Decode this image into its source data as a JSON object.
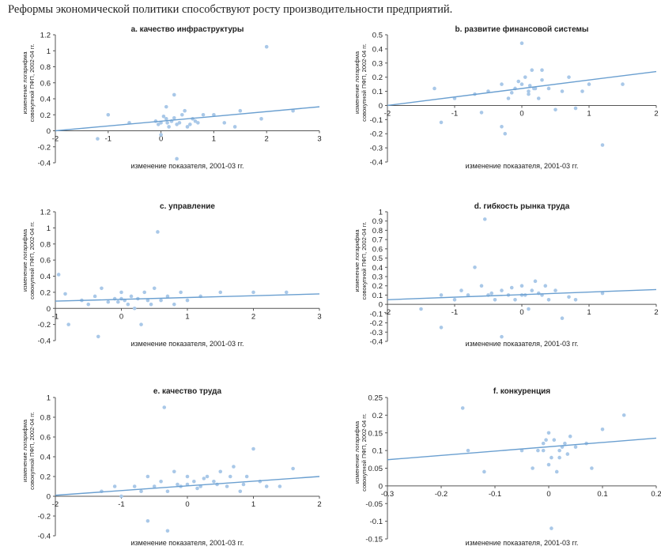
{
  "title": "Реформы экономической политики способствуют росту производительности предприятий.",
  "colors": {
    "points": "#a9c8e8",
    "line": "#6a9fd0",
    "axis": "#555555",
    "text": "#222222"
  },
  "chart_data": [
    {
      "type": "scatter",
      "title": "a. качество инфраструктуры",
      "xlabel": "изменение показателя, 2001-03 гг.",
      "ylabel": "изменение логарифма совокупной ПФП, 2002-04 гг.",
      "xlim": [
        -2,
        3
      ],
      "ylim": [
        -0.4,
        1.2
      ],
      "xticks": [
        "-2",
        "-1",
        "0",
        "1",
        "2",
        "3"
      ],
      "yticks": [
        "-0.4",
        "-0.2",
        "0",
        "0.2",
        "0.4",
        "0.6",
        "0.8",
        "1",
        "1.2"
      ],
      "trend": [
        [
          -2,
          0.0
        ],
        [
          3,
          0.3
        ]
      ],
      "points": [
        [
          -1.0,
          0.2
        ],
        [
          -0.6,
          0.1
        ],
        [
          -1.2,
          -0.1
        ],
        [
          0.0,
          0.1
        ],
        [
          0.1,
          0.15
        ],
        [
          0.2,
          0.12
        ],
        [
          0.3,
          0.08
        ],
        [
          0.4,
          0.2
        ],
        [
          0.25,
          0.45
        ],
        [
          0.1,
          0.3
        ],
        [
          0.0,
          -0.05
        ],
        [
          0.3,
          -0.35
        ],
        [
          0.5,
          0.05
        ],
        [
          0.6,
          0.15
        ],
        [
          0.7,
          0.1
        ],
        [
          -0.1,
          0.12
        ],
        [
          0.05,
          0.18
        ],
        [
          0.15,
          0.05
        ],
        [
          0.35,
          0.1
        ],
        [
          0.45,
          0.25
        ],
        [
          0.8,
          0.2
        ],
        [
          1.0,
          0.2
        ],
        [
          1.2,
          0.1
        ],
        [
          1.5,
          0.25
        ],
        [
          1.9,
          0.15
        ],
        [
          2.0,
          1.05
        ],
        [
          2.5,
          0.25
        ],
        [
          0.2,
          0.12
        ],
        [
          0.25,
          0.16
        ],
        [
          0.12,
          0.1
        ],
        [
          -0.05,
          0.08
        ],
        [
          0.55,
          0.08
        ],
        [
          0.65,
          0.12
        ],
        [
          1.4,
          0.05
        ]
      ]
    },
    {
      "type": "scatter",
      "title": "b. развитие финансовой системы",
      "xlabel": "изменение показателя, 2001-03 гг.",
      "ylabel": "изменение логарифма совокупной ПФП, 2002-04 гг.",
      "xlim": [
        -2,
        2
      ],
      "ylim": [
        -0.4,
        0.5
      ],
      "xticks": [
        "-2",
        "-1",
        "0",
        "1",
        "2"
      ],
      "yticks": [
        "-0.4",
        "-0.3",
        "-0.2",
        "-0.1",
        "0",
        "0.1",
        "0.2",
        "0.3",
        "0.4",
        "0.5"
      ],
      "trend": [
        [
          -2,
          0.0
        ],
        [
          2,
          0.24
        ]
      ],
      "points": [
        [
          -1.2,
          -0.12
        ],
        [
          -1.3,
          0.12
        ],
        [
          -1.0,
          0.05
        ],
        [
          -0.7,
          0.08
        ],
        [
          -0.5,
          0.1
        ],
        [
          -0.3,
          0.15
        ],
        [
          -0.2,
          0.05
        ],
        [
          -0.1,
          0.12
        ],
        [
          0.0,
          0.15
        ],
        [
          0.05,
          0.2
        ],
        [
          0.1,
          0.1
        ],
        [
          0.15,
          0.25
        ],
        [
          0.2,
          0.12
        ],
        [
          0.25,
          0.05
        ],
        [
          0.3,
          0.18
        ],
        [
          0.0,
          0.44
        ],
        [
          -0.3,
          -0.15
        ],
        [
          -0.25,
          -0.2
        ],
        [
          -0.6,
          -0.05
        ],
        [
          0.5,
          -0.03
        ],
        [
          0.6,
          0.1
        ],
        [
          0.7,
          0.2
        ],
        [
          0.8,
          -0.02
        ],
        [
          1.0,
          0.15
        ],
        [
          1.2,
          -0.28
        ],
        [
          0.3,
          0.25
        ],
        [
          0.1,
          0.08
        ],
        [
          -0.05,
          0.17
        ],
        [
          0.12,
          0.14
        ],
        [
          0.18,
          0.12
        ],
        [
          -0.15,
          0.09
        ],
        [
          0.4,
          0.12
        ],
        [
          1.5,
          0.15
        ],
        [
          0.9,
          0.1
        ]
      ]
    },
    {
      "type": "scatter",
      "title": "c. управление",
      "xlabel": "изменение показателя, 2001-03 гг.",
      "ylabel": "изменение логарифма совокупной ПФП, 2002-04 гг.",
      "xlim": [
        -1,
        3
      ],
      "ylim": [
        -0.4,
        1.2
      ],
      "xticks": [
        "-1",
        "0",
        "1",
        "2",
        "3"
      ],
      "yticks": [
        "-0.4",
        "-0.2",
        "0",
        "0.2",
        "0.4",
        "0.6",
        "0.8",
        "1",
        "1.2"
      ],
      "trend": [
        [
          -1,
          0.09
        ],
        [
          3,
          0.18
        ]
      ],
      "points": [
        [
          -0.95,
          0.42
        ],
        [
          -0.85,
          0.18
        ],
        [
          -0.8,
          -0.2
        ],
        [
          -0.6,
          0.1
        ],
        [
          -0.5,
          0.05
        ],
        [
          -0.4,
          0.15
        ],
        [
          -0.3,
          0.25
        ],
        [
          -0.2,
          0.08
        ],
        [
          -0.1,
          0.12
        ],
        [
          0.0,
          0.2
        ],
        [
          0.05,
          0.1
        ],
        [
          0.1,
          0.05
        ],
        [
          0.15,
          0.15
        ],
        [
          0.2,
          0.0
        ],
        [
          0.3,
          -0.2
        ],
        [
          0.35,
          0.2
        ],
        [
          0.4,
          0.1
        ],
        [
          0.5,
          0.25
        ],
        [
          0.55,
          0.95
        ],
        [
          0.6,
          0.1
        ],
        [
          0.7,
          0.15
        ],
        [
          0.8,
          0.05
        ],
        [
          0.9,
          0.2
        ],
        [
          1.0,
          0.1
        ],
        [
          1.2,
          0.15
        ],
        [
          1.5,
          0.2
        ],
        [
          2.0,
          0.2
        ],
        [
          2.5,
          0.2
        ],
        [
          -0.35,
          -0.35
        ],
        [
          0.0,
          0.12
        ],
        [
          -0.05,
          0.08
        ],
        [
          0.25,
          0.12
        ],
        [
          0.45,
          0.05
        ]
      ]
    },
    {
      "type": "scatter",
      "title": "d. гибкость рынка труда",
      "xlabel": "изменение показателя, 2001-03 гг.",
      "ylabel": "изменение логарифма совокупной ПФП, 2002-04 гг.",
      "xlim": [
        -2,
        2
      ],
      "ylim": [
        -0.4,
        1.0
      ],
      "xticks": [
        "-2",
        "-1",
        "0",
        "1",
        "2"
      ],
      "yticks": [
        "-0.4",
        "-0.3",
        "-0.2",
        "-0.1",
        "0",
        "0.1",
        "0.2",
        "0.3",
        "0.4",
        "0.5",
        "0.6",
        "0.7",
        "0.8",
        "0.9",
        "1"
      ],
      "trend": [
        [
          -2,
          0.05
        ],
        [
          2,
          0.16
        ]
      ],
      "points": [
        [
          -1.5,
          -0.05
        ],
        [
          -1.2,
          -0.25
        ],
        [
          -1.2,
          0.1
        ],
        [
          -1.0,
          0.05
        ],
        [
          -0.9,
          0.15
        ],
        [
          -0.8,
          0.1
        ],
        [
          -0.7,
          0.4
        ],
        [
          -0.6,
          0.2
        ],
        [
          -0.5,
          0.1
        ],
        [
          -0.4,
          0.05
        ],
        [
          -0.3,
          0.15
        ],
        [
          -0.2,
          0.1
        ],
        [
          -0.1,
          0.05
        ],
        [
          0.0,
          0.2
        ],
        [
          0.05,
          0.1
        ],
        [
          0.1,
          -0.05
        ],
        [
          0.15,
          0.15
        ],
        [
          0.2,
          0.25
        ],
        [
          0.3,
          0.1
        ],
        [
          0.4,
          0.05
        ],
        [
          0.5,
          0.15
        ],
        [
          0.6,
          -0.15
        ],
        [
          0.8,
          0.05
        ],
        [
          1.2,
          0.12
        ],
        [
          -0.55,
          0.92
        ],
        [
          -0.3,
          -0.35
        ],
        [
          0.0,
          0.1
        ],
        [
          -0.15,
          0.18
        ],
        [
          0.25,
          0.12
        ],
        [
          0.35,
          0.2
        ],
        [
          -0.45,
          0.12
        ],
        [
          0.7,
          0.08
        ]
      ]
    },
    {
      "type": "scatter",
      "title": "e. качество труда",
      "xlabel": "изменение показателя, 2001-03 гг.",
      "ylabel": "изменение логарифма совокупной ПФП, 2002-04 гг.",
      "xlim": [
        -2,
        2
      ],
      "ylim": [
        -0.4,
        1.0
      ],
      "xticks": [
        "-2",
        "-1",
        "0",
        "1",
        "2"
      ],
      "yticks": [
        "-0.4",
        "-0.2",
        "0",
        "0.2",
        "0.4",
        "0.6",
        "0.8",
        "1"
      ],
      "trend": [
        [
          -2,
          0.01
        ],
        [
          2,
          0.2
        ]
      ],
      "points": [
        [
          -1.3,
          0.05
        ],
        [
          -1.1,
          0.1
        ],
        [
          -1.0,
          0.0
        ],
        [
          -0.8,
          0.1
        ],
        [
          -0.7,
          0.05
        ],
        [
          -0.6,
          0.2
        ],
        [
          -0.5,
          0.1
        ],
        [
          -0.4,
          0.15
        ],
        [
          -0.3,
          0.05
        ],
        [
          -0.2,
          0.25
        ],
        [
          -0.1,
          0.1
        ],
        [
          0.0,
          0.2
        ],
        [
          0.1,
          0.15
        ],
        [
          0.2,
          0.1
        ],
        [
          0.3,
          0.2
        ],
        [
          0.4,
          0.15
        ],
        [
          0.5,
          0.25
        ],
        [
          0.6,
          0.1
        ],
        [
          0.7,
          0.3
        ],
        [
          0.8,
          0.05
        ],
        [
          0.9,
          0.2
        ],
        [
          1.0,
          0.48
        ],
        [
          1.1,
          0.15
        ],
        [
          1.2,
          0.1
        ],
        [
          1.4,
          0.1
        ],
        [
          1.6,
          0.28
        ],
        [
          -0.6,
          -0.25
        ],
        [
          -0.3,
          -0.35
        ],
        [
          -0.35,
          0.9
        ],
        [
          0.0,
          0.12
        ],
        [
          0.15,
          0.08
        ],
        [
          0.45,
          0.12
        ],
        [
          -0.15,
          0.12
        ],
        [
          0.25,
          0.18
        ],
        [
          0.65,
          0.2
        ],
        [
          0.85,
          0.12
        ]
      ]
    },
    {
      "type": "scatter",
      "title": "f. конкуренция",
      "xlabel": "изменение показателя, 2001-03 гг.",
      "ylabel": "изменение логарифма совокупной ПФП, 2002-04 гг.",
      "xlim": [
        -0.3,
        0.2
      ],
      "ylim": [
        -0.15,
        0.25
      ],
      "xticks": [
        "-0.3",
        "-0.2",
        "-0.1",
        "0",
        "0.1",
        "0.2"
      ],
      "yticks": [
        "-0.15",
        "-0.1",
        "-0.05",
        "0",
        "0.05",
        "0.1",
        "0.15",
        "0.2",
        "0.25"
      ],
      "trend": [
        [
          -0.3,
          0.074
        ],
        [
          0.2,
          0.135
        ]
      ],
      "points": [
        [
          -0.16,
          0.22
        ],
        [
          -0.15,
          0.1
        ],
        [
          -0.12,
          0.04
        ],
        [
          -0.05,
          0.1
        ],
        [
          -0.03,
          0.05
        ],
        [
          -0.02,
          0.1
        ],
        [
          -0.01,
          0.12
        ],
        [
          0.0,
          0.15
        ],
        [
          0.005,
          0.08
        ],
        [
          0.01,
          0.13
        ],
        [
          0.02,
          0.1
        ],
        [
          0.03,
          0.12
        ],
        [
          0.04,
          0.14
        ],
        [
          0.05,
          0.11
        ],
        [
          0.07,
          0.12
        ],
        [
          0.0,
          0.06
        ],
        [
          0.015,
          0.04
        ],
        [
          0.1,
          0.16
        ],
        [
          0.14,
          0.2
        ],
        [
          0.005,
          -0.12
        ],
        [
          -0.01,
          0.1
        ],
        [
          0.02,
          0.08
        ],
        [
          0.025,
          0.11
        ],
        [
          0.035,
          0.09
        ],
        [
          0.08,
          0.05
        ],
        [
          -0.005,
          0.13
        ]
      ]
    }
  ]
}
